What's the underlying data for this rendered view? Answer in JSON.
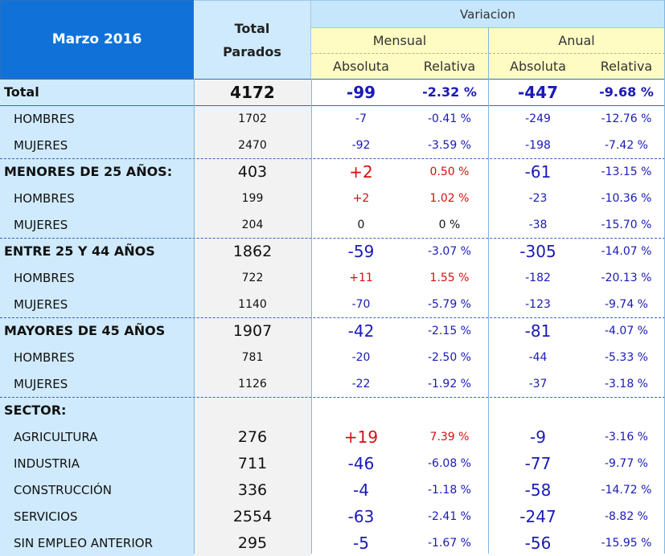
{
  "header": {
    "month": "Marzo 2016",
    "total_line1": "Total",
    "total_line2": "Parados",
    "variacion": "Variacion",
    "mensual": "Mensual",
    "anual": "Anual",
    "absoluta": "Absoluta",
    "relativa": "Relativa"
  },
  "colors": {
    "negative": "#1a1ab8",
    "positive": "#d60f0f",
    "header_blue": "#1072d8",
    "label_column": "#cfeafc",
    "subheader_yellow": "#fffcc3"
  },
  "rows": [
    {
      "label": "Total",
      "total": "4172",
      "m_abs": "-99",
      "m_rel": "-2.32 %",
      "a_abs": "-447",
      "a_rel": "-9.68 %"
    },
    {
      "label": "HOMBRES",
      "total": "1702",
      "m_abs": "-7",
      "m_rel": "-0.41 %",
      "a_abs": "-249",
      "a_rel": "-12.76 %"
    },
    {
      "label": "MUJERES",
      "total": "2470",
      "m_abs": "-92",
      "m_rel": "-3.59 %",
      "a_abs": "-198",
      "a_rel": "-7.42 %"
    },
    {
      "label": "MENORES DE 25 AÑOS:",
      "total": "403",
      "m_abs": "+2",
      "m_rel": "0.50 %",
      "a_abs": "-61",
      "a_rel": "-13.15 %"
    },
    {
      "label": "HOMBRES",
      "total": "199",
      "m_abs": "+2",
      "m_rel": "1.02 %",
      "a_abs": "-23",
      "a_rel": "-10.36 %"
    },
    {
      "label": "MUJERES",
      "total": "204",
      "m_abs": "0",
      "m_rel": "0 %",
      "a_abs": "-38",
      "a_rel": "-15.70 %"
    },
    {
      "label": "ENTRE 25 Y 44 AÑOS",
      "total": "1862",
      "m_abs": "-59",
      "m_rel": "-3.07 %",
      "a_abs": "-305",
      "a_rel": "-14.07 %"
    },
    {
      "label": "HOMBRES",
      "total": "722",
      "m_abs": "+11",
      "m_rel": "1.55 %",
      "a_abs": "-182",
      "a_rel": "-20.13 %"
    },
    {
      "label": "MUJERES",
      "total": "1140",
      "m_abs": "-70",
      "m_rel": "-5.79 %",
      "a_abs": "-123",
      "a_rel": "-9.74 %"
    },
    {
      "label": "MAYORES DE 45 AÑOS",
      "total": "1907",
      "m_abs": "-42",
      "m_rel": "-2.15 %",
      "a_abs": "-81",
      "a_rel": "-4.07 %"
    },
    {
      "label": "HOMBRES",
      "total": "781",
      "m_abs": "-20",
      "m_rel": "-2.50 %",
      "a_abs": "-44",
      "a_rel": "-5.33 %"
    },
    {
      "label": "MUJERES",
      "total": "1126",
      "m_abs": "-22",
      "m_rel": "-1.92 %",
      "a_abs": "-37",
      "a_rel": "-3.18 %"
    },
    {
      "label": "SECTOR:",
      "total": "",
      "m_abs": "",
      "m_rel": "",
      "a_abs": "",
      "a_rel": ""
    },
    {
      "label": "AGRICULTURA",
      "total": "276",
      "m_abs": "+19",
      "m_rel": "7.39 %",
      "a_abs": "-9",
      "a_rel": "-3.16 %"
    },
    {
      "label": "INDUSTRIA",
      "total": "711",
      "m_abs": "-46",
      "m_rel": "-6.08 %",
      "a_abs": "-77",
      "a_rel": "-9.77 %"
    },
    {
      "label": "CONSTRUCCIÓN",
      "total": "336",
      "m_abs": "-4",
      "m_rel": "-1.18 %",
      "a_abs": "-58",
      "a_rel": "-14.72 %"
    },
    {
      "label": "SERVICIOS",
      "total": "2554",
      "m_abs": "-63",
      "m_rel": "-2.41 %",
      "a_abs": "-247",
      "a_rel": "-8.82 %"
    },
    {
      "label": "SIN EMPLEO ANTERIOR",
      "total": "295",
      "m_abs": "-5",
      "m_rel": "-1.67 %",
      "a_abs": "-56",
      "a_rel": "-15.95 %"
    }
  ]
}
